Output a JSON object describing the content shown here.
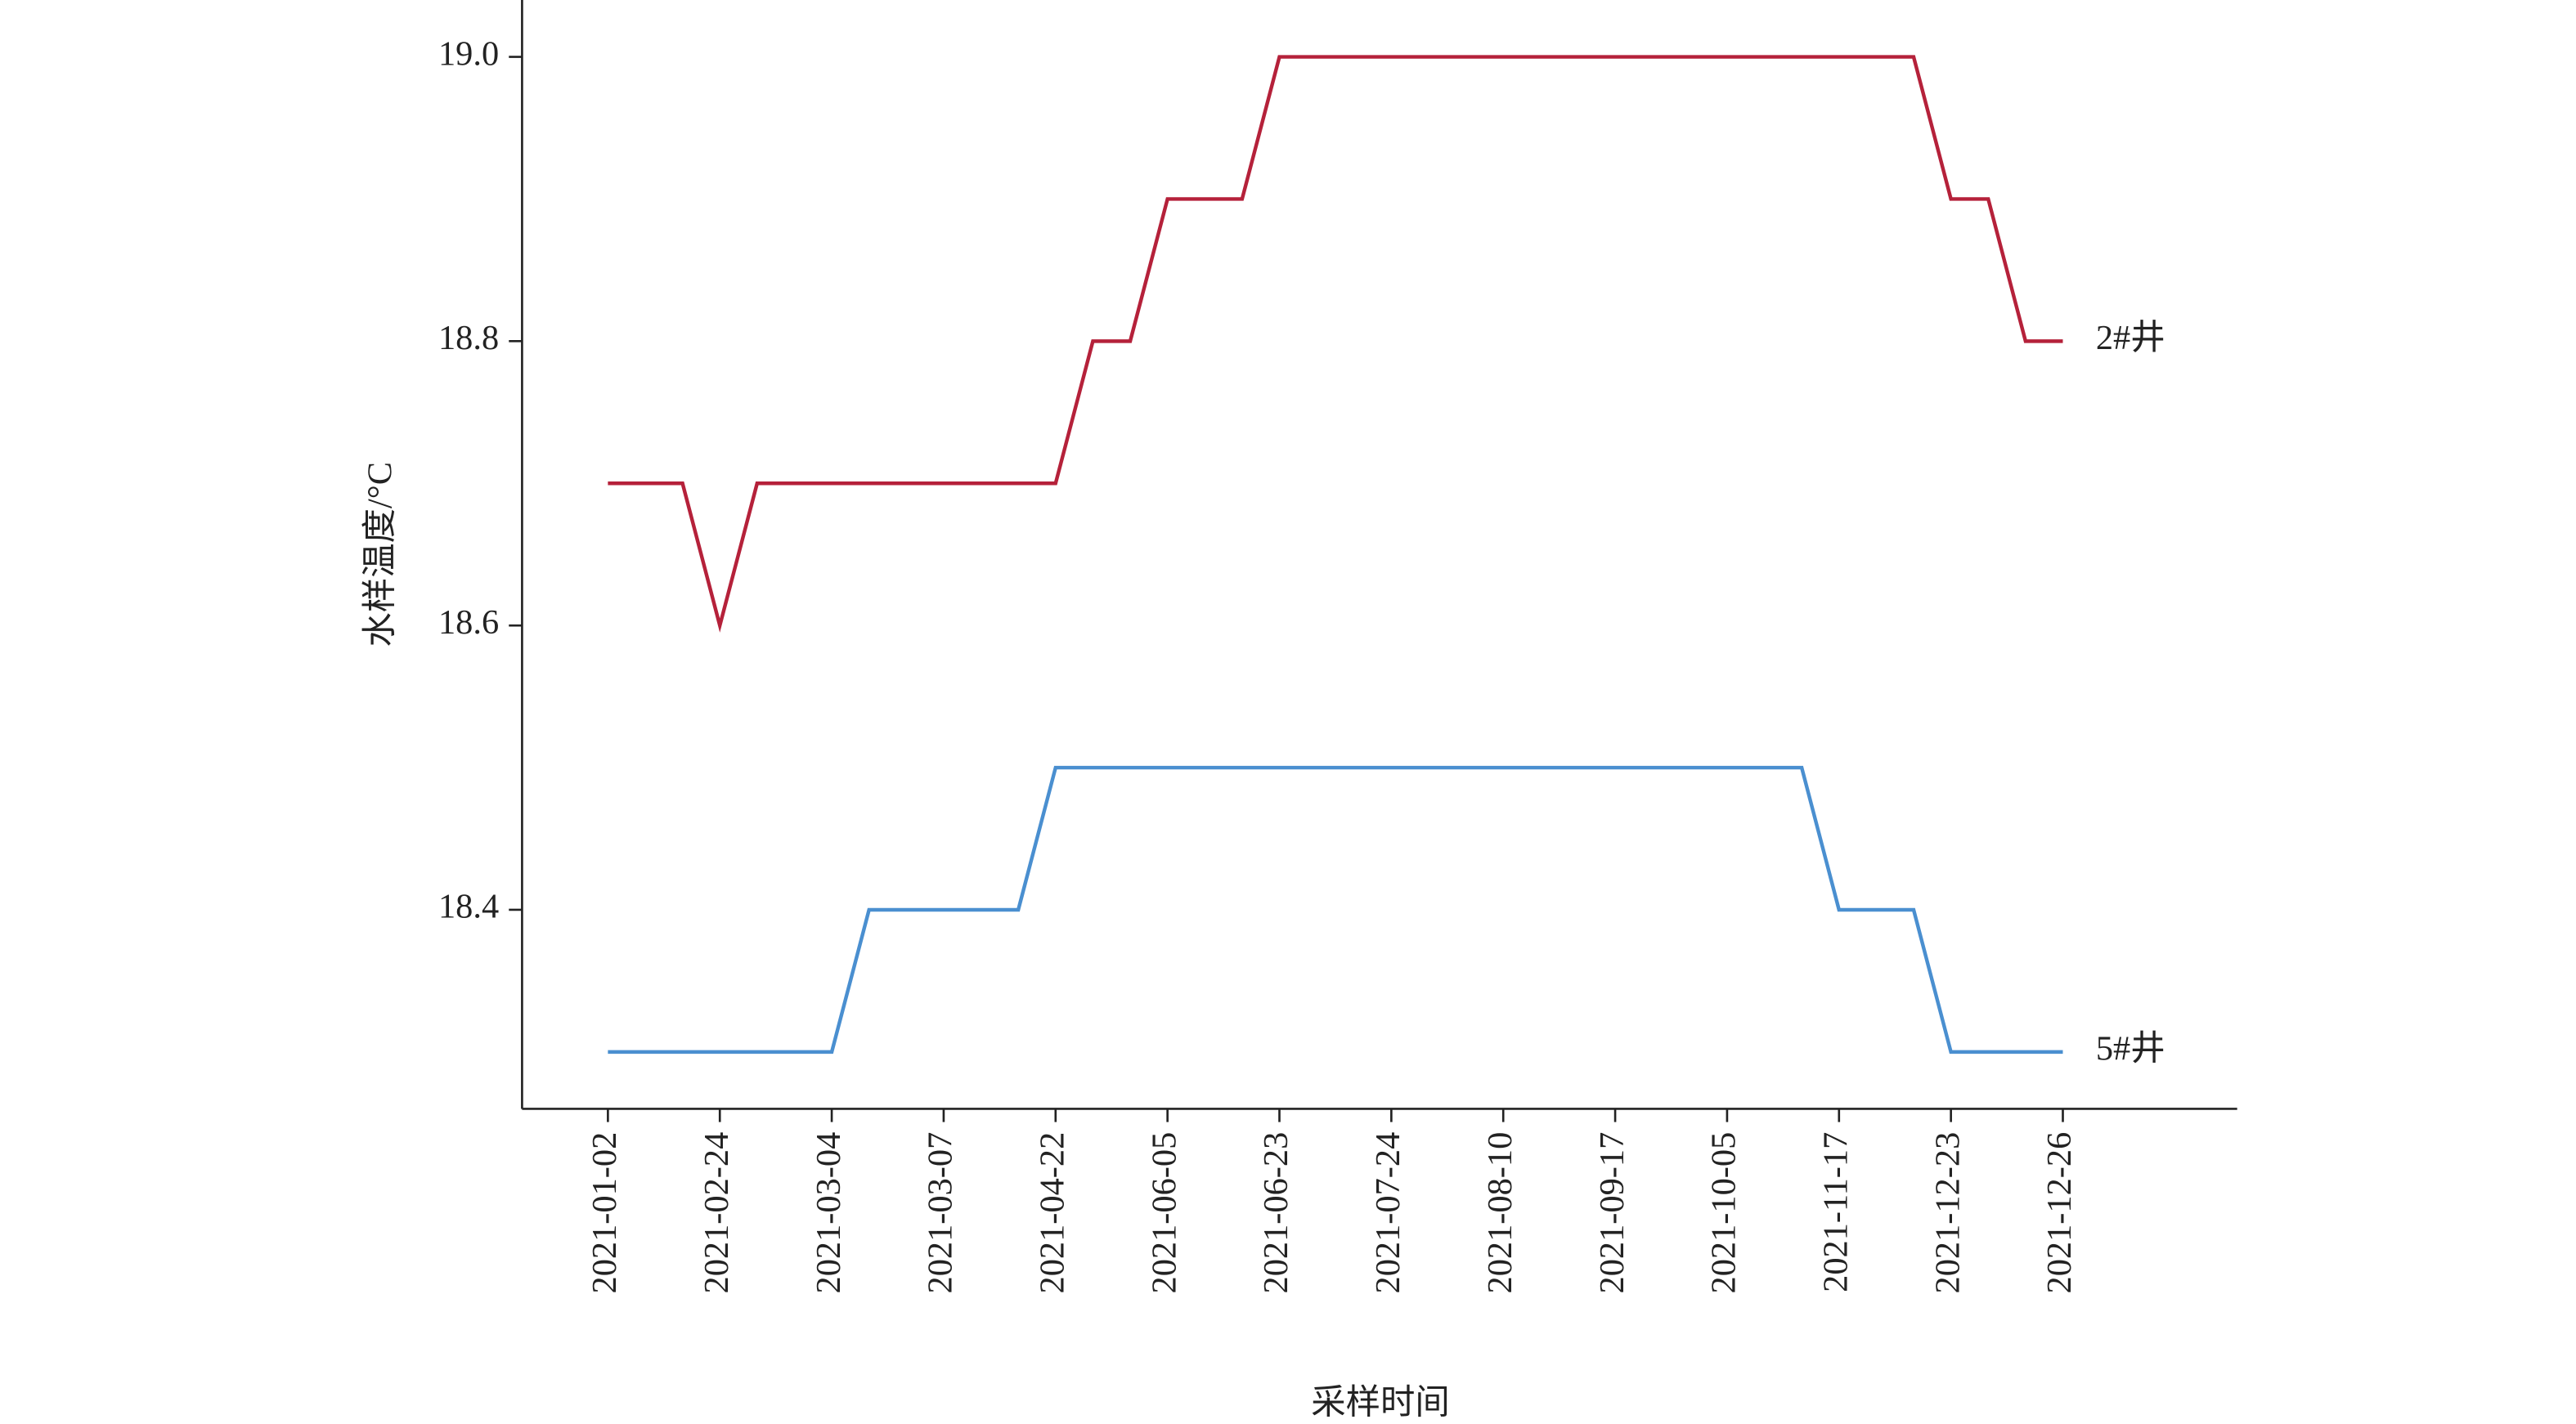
{
  "chart_data": {
    "type": "line",
    "y_label": "水样温度/°C",
    "x_label": "采样时间",
    "categories": [
      "2021-01-02",
      null,
      null,
      "2021-02-24",
      null,
      null,
      "2021-03-04",
      null,
      null,
      "2021-03-07",
      null,
      null,
      "2021-04-22",
      null,
      null,
      "2021-06-05",
      null,
      null,
      "2021-06-23",
      null,
      null,
      "2021-07-24",
      null,
      null,
      "2021-08-10",
      null,
      null,
      "2021-09-17",
      null,
      null,
      "2021-10-05",
      null,
      null,
      "2021-11-17",
      null,
      null,
      "2021-12-23",
      null,
      null,
      "2021-12-26"
    ],
    "series": [
      {
        "name": "2#井",
        "color": "#b5213a",
        "values": [
          18.7,
          18.7,
          18.7,
          18.6,
          18.7,
          18.7,
          18.7,
          18.7,
          18.7,
          18.7,
          18.7,
          18.7,
          18.7,
          18.8,
          18.8,
          18.9,
          18.9,
          18.9,
          19.0,
          19.0,
          19.0,
          19.0,
          19.0,
          19.0,
          19.0,
          19.0,
          19.0,
          19.0,
          19.0,
          19.0,
          19.0,
          19.0,
          19.0,
          19.0,
          19.0,
          19.0,
          18.9,
          18.9,
          18.8,
          18.8
        ]
      },
      {
        "name": "5#井",
        "color": "#4a8fd0",
        "values": [
          18.3,
          18.3,
          18.3,
          18.3,
          18.3,
          18.3,
          18.3,
          18.4,
          18.4,
          18.4,
          18.4,
          18.4,
          18.5,
          18.5,
          18.5,
          18.5,
          18.5,
          18.5,
          18.5,
          18.5,
          18.5,
          18.5,
          18.5,
          18.5,
          18.5,
          18.5,
          18.5,
          18.5,
          18.5,
          18.5,
          18.5,
          18.5,
          18.5,
          18.4,
          18.4,
          18.4,
          18.3,
          18.3,
          18.3,
          18.3
        ]
      }
    ],
    "ylim": [
      18.26,
      19.04
    ],
    "yticks": [
      18.4,
      18.6,
      18.8,
      {
        "value": 19,
        "label": "19.0"
      }
    ]
  }
}
